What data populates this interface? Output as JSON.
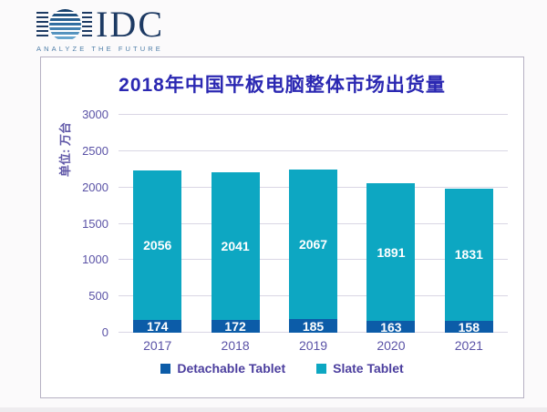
{
  "logo": {
    "text": "IDC",
    "tagline": "ANALYZE THE FUTURE"
  },
  "chart_data": {
    "type": "bar",
    "stacked": true,
    "title": "2018年中国平板电脑整体市场出货量",
    "ylabel": "单位: 万台",
    "xlabel": "",
    "categories": [
      "2017",
      "2018",
      "2019",
      "2020",
      "2021"
    ],
    "series": [
      {
        "name": "Detachable Tablet",
        "color": "#0c5ca8",
        "values": [
          174,
          172,
          185,
          163,
          158
        ]
      },
      {
        "name": "Slate Tablet",
        "color": "#0da7c2",
        "values": [
          2056,
          2041,
          2067,
          1891,
          1831
        ]
      }
    ],
    "ylim": [
      0,
      3000
    ],
    "yticks": [
      0,
      500,
      1000,
      1500,
      2000,
      2500,
      3000
    ],
    "grid": true,
    "legend_position": "bottom",
    "value_labels": true,
    "label_color": "#ffffff",
    "colors": {
      "title": "#2b28b2",
      "axis_text": "#5a52a6",
      "legend_text": "#4b3e9e",
      "gridline": "#d9d6e4",
      "box_border": "#b6b1c3"
    }
  }
}
